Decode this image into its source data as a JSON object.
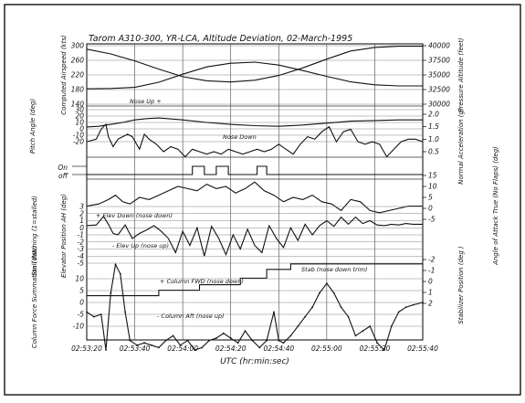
{
  "chart_data": {
    "type": "line",
    "title": "Tarom A310-300, YR-LCA, Altitude Deviation, 02-March-1995",
    "xlabel": "UTC (hr:min:sec)",
    "x_ticks": [
      "02:53:20",
      "02:53:40",
      "02:54:00",
      "02:54:20",
      "02:54:40",
      "02:55:00",
      "02:55:20",
      "02:55:40"
    ],
    "x_range_seconds": [
      0,
      140
    ],
    "grid": true,
    "panels": [
      {
        "id": "airspeed_altitude",
        "left_label": "Computed Airspeed (kts)",
        "left_ticks": [
          "300",
          "260",
          "220",
          "180",
          "140"
        ],
        "left_range": [
          140,
          300
        ],
        "right_label": "Pressure Altitude (feet)",
        "right_ticks": [
          "40000",
          "37500",
          "35000",
          "32500",
          "30000"
        ],
        "right_range": [
          30000,
          40000
        ],
        "series": [
          {
            "axis": "left",
            "t": [
              0,
              10,
              20,
              30,
              40,
              50,
              60,
              70,
              80,
              90,
              100,
              110,
              120,
              130,
              140
            ],
            "values": [
              182,
              183,
              186,
              200,
              222,
              242,
              252,
              255,
              247,
              232,
              216,
              201,
              193,
              190,
              190
            ]
          },
          {
            "axis": "right",
            "t": [
              0,
              10,
              20,
              30,
              40,
              50,
              60,
              70,
              80,
              90,
              100,
              110,
              120,
              130,
              140
            ],
            "values": [
              39400,
              38600,
              37400,
              36000,
              34700,
              34000,
              33800,
              34100,
              34900,
              36200,
              37700,
              39100,
              39700,
              39900,
              39900
            ]
          }
        ]
      },
      {
        "id": "pitch_accel",
        "left_label": "Pitch Angle (deg)",
        "left_ticks": [
          "30",
          "20",
          "10",
          "0",
          "-10",
          "-20"
        ],
        "left_range": [
          -20,
          30
        ],
        "right_label": "Normal Acceleration (g)",
        "right_ticks": [
          "2.0",
          "1.5",
          "1.0",
          "0.5"
        ],
        "right_range": [
          0.5,
          2.0
        ],
        "annotations": [
          "Nose Up +",
          "Nose Down"
        ],
        "series": [
          {
            "axis": "left",
            "t": [
              0,
              5,
              10,
              15,
              20,
              25,
              30,
              40,
              50,
              60,
              70,
              80,
              90,
              100,
              110,
              120,
              130,
              140
            ],
            "values": [
              3,
              4,
              7,
              10,
              14,
              16,
              17,
              14,
              10,
              7,
              5,
              4,
              6,
              9,
              12,
              13,
              14,
              14
            ]
          },
          {
            "axis": "right",
            "t": [
              0,
              4,
              6,
              8,
              9,
              11,
              13,
              15,
              17,
              19,
              22,
              24,
              26,
              29,
              32,
              35,
              38,
              41,
              44,
              47,
              50,
              53,
              56,
              59,
              62,
              65,
              68,
              71,
              74,
              77,
              80,
              83,
              86,
              89,
              92,
              95,
              98,
              101,
              104,
              107,
              110,
              113,
              116,
              119,
              122,
              125,
              128,
              131,
              134,
              137,
              140
            ],
            "values": [
              0.9,
              1.0,
              1.4,
              1.6,
              1.1,
              0.7,
              1.0,
              1.1,
              1.2,
              1.1,
              0.6,
              1.2,
              1.0,
              0.8,
              0.5,
              0.7,
              0.6,
              0.3,
              0.6,
              0.5,
              0.4,
              0.5,
              0.4,
              0.6,
              0.5,
              0.4,
              0.5,
              0.6,
              0.5,
              0.6,
              0.8,
              0.6,
              0.4,
              0.8,
              1.1,
              1.0,
              1.3,
              1.5,
              0.9,
              1.3,
              1.4,
              0.9,
              0.8,
              0.9,
              0.8,
              0.3,
              0.6,
              0.9,
              1.0,
              1.0,
              0.9
            ]
          }
        ]
      },
      {
        "id": "stall_warning",
        "left_label": "Stall Warning (1=stalled)",
        "left_ticks": [
          "On",
          "off"
        ],
        "series": [
          {
            "axis": "left",
            "type": "step",
            "t": [
              0,
              43,
              44,
              48,
              49,
              53,
              54,
              58,
              59,
              70,
              71,
              74,
              75,
              140
            ],
            "values": [
              0,
              0,
              1,
              1,
              0,
              0,
              1,
              1,
              0,
              0,
              1,
              1,
              0,
              0
            ]
          }
        ]
      },
      {
        "id": "aoa",
        "right_label": "Angle of Attack True (No Flaps) (deg)",
        "right_ticks": [
          "15",
          "10",
          "5",
          "0",
          "-5"
        ],
        "right_range": [
          -5,
          15
        ],
        "series": [
          {
            "axis": "right",
            "t": [
              0,
              5,
              9,
              12,
              15,
              18,
              22,
              26,
              30,
              34,
              38,
              42,
              46,
              50,
              54,
              58,
              62,
              66,
              70,
              74,
              78,
              82,
              86,
              90,
              94,
              98,
              102,
              106,
              110,
              114,
              118,
              122,
              126,
              130,
              134,
              137,
              140
            ],
            "values": [
              1,
              2,
              4,
              6,
              3,
              2,
              5,
              4,
              6,
              8,
              10,
              9,
              8,
              11,
              9,
              10,
              7,
              9,
              12,
              8,
              6,
              3,
              5,
              4,
              6,
              3,
              2,
              -1,
              4,
              3,
              -1,
              -2,
              -1,
              0,
              1,
              1,
              1
            ]
          }
        ]
      },
      {
        "id": "elevator",
        "left_label": "Elevator Position AH (deg)",
        "left_ticks": [
          "3",
          "2",
          "1",
          "0",
          "-1",
          "-2",
          "-3",
          "-4",
          "-5"
        ],
        "left_range": [
          -5,
          3
        ],
        "annotations": [
          "+ Elev Down (nose down)",
          "- Elev Up (nose up)"
        ],
        "series": [
          {
            "axis": "left",
            "t": [
              0,
              4,
              7,
              9,
              11,
              13,
              16,
              19,
              22,
              25,
              28,
              31,
              34,
              37,
              40,
              43,
              46,
              49,
              52,
              55,
              58,
              61,
              64,
              67,
              70,
              73,
              76,
              79,
              82,
              85,
              88,
              91,
              94,
              97,
              100,
              103,
              106,
              109,
              112,
              115,
              118,
              121,
              124,
              127,
              130,
              133,
              136,
              140
            ],
            "values": [
              0.3,
              0.4,
              1.6,
              0.5,
              -0.8,
              -1.0,
              0.4,
              -1.5,
              -0.8,
              -0.3,
              0.3,
              -0.5,
              -1.5,
              -3.5,
              -0.5,
              -2.5,
              0.0,
              -4.0,
              0.2,
              -1.5,
              -3.8,
              -1.0,
              -3.0,
              -0.2,
              -2.5,
              -3.5,
              0.3,
              -1.5,
              -2.8,
              0.0,
              -1.8,
              0.5,
              -1.0,
              0.3,
              1.0,
              0.2,
              1.5,
              0.5,
              1.5,
              0.6,
              1.0,
              0.4,
              0.3,
              0.5,
              0.4,
              0.6,
              0.5,
              0.5
            ]
          }
        ]
      },
      {
        "id": "stabilizer",
        "right_label": "Stabilizer Position (deg )",
        "right_ticks": [
          "-2",
          "-1",
          "0",
          "1",
          "2"
        ],
        "right_range": [
          -2,
          2
        ],
        "annotations": [
          "Stab (nose down trim)"
        ],
        "series": [
          {
            "axis": "right",
            "type": "step",
            "t": [
              0,
              28,
              30,
              45,
              47,
              62,
              64,
              72,
              75,
              82,
              85,
              98,
              140
            ],
            "values": [
              1.3,
              1.3,
              0.8,
              0.8,
              0.3,
              0.3,
              -0.3,
              -0.3,
              -1.1,
              -1.1,
              -1.6,
              -1.6,
              -1.6
            ]
          }
        ]
      },
      {
        "id": "column_force",
        "left_label": "Column Force Summation (daN)",
        "left_ticks": [
          "10",
          "5",
          "0",
          "-5",
          "-10"
        ],
        "left_range": [
          -12,
          12
        ],
        "annotations": [
          "+ Column FWD (nose down)",
          "- Column Aft (nose up)"
        ],
        "series": [
          {
            "axis": "left",
            "t": [
              0,
              3,
              6,
              8,
              10,
              12,
              14,
              16,
              18,
              21,
              24,
              27,
              30,
              33,
              36,
              39,
              42,
              45,
              48,
              51,
              54,
              57,
              60,
              63,
              66,
              69,
              72,
              75,
              78,
              80,
              82,
              85,
              88,
              91,
              94,
              97,
              100,
              103,
              106,
              109,
              112,
              115,
              118,
              121,
              124,
              127,
              130,
              133,
              136,
              140
            ],
            "values": [
              -2.0,
              -3.0,
              -2.5,
              -10.0,
              2.0,
              8.0,
              6.0,
              -2.0,
              -8.0,
              -9.0,
              -8.5,
              -9.0,
              -9.5,
              -8.0,
              -7.0,
              -9.0,
              -8.0,
              -10.0,
              -9.5,
              -8.0,
              -7.5,
              -6.5,
              -7.5,
              -8.5,
              -6.0,
              -8.0,
              -9.5,
              -8.0,
              -2.0,
              -8.0,
              -8.5,
              -7.0,
              -5.0,
              -3.0,
              -1.0,
              2.0,
              4.0,
              2.0,
              -1.0,
              -3.0,
              -7.0,
              -6.0,
              -5.0,
              -8.5,
              -10.0,
              -5.0,
              -2.0,
              -1.0,
              -0.5,
              0.0
            ]
          }
        ]
      }
    ]
  }
}
